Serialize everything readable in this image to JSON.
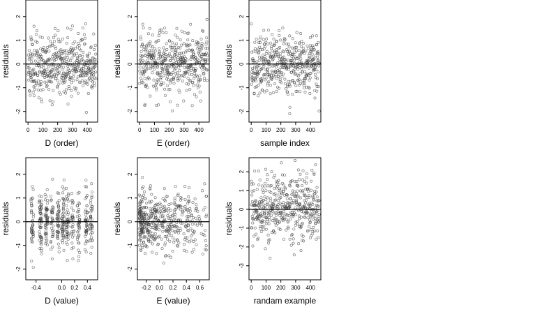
{
  "chart_data": [
    {
      "type": "scatter",
      "xlabel": "D (order)",
      "ylabel": "residuals",
      "xlim": [
        -15,
        470
      ],
      "ylim": [
        -2.45,
        2.7
      ],
      "xticks": [
        0,
        100,
        200,
        300,
        400
      ],
      "yticks": [
        -2,
        -1,
        0,
        1,
        2
      ],
      "hline": 0,
      "n": 460,
      "seed": 11,
      "xmode": "index",
      "sd": 0.75
    },
    {
      "type": "scatter",
      "xlabel": "E (order)",
      "ylabel": "residuals",
      "xlim": [
        -15,
        470
      ],
      "ylim": [
        -2.45,
        2.7
      ],
      "xticks": [
        0,
        100,
        200,
        300,
        400
      ],
      "yticks": [
        -2,
        -1,
        0,
        1,
        2
      ],
      "hline": 0,
      "n": 460,
      "seed": 23,
      "xmode": "index",
      "sd": 0.75
    },
    {
      "type": "scatter",
      "xlabel": "sample index",
      "ylabel": "residuals",
      "xlim": [
        -15,
        470
      ],
      "ylim": [
        -2.45,
        2.7
      ],
      "xticks": [
        0,
        100,
        200,
        300,
        400
      ],
      "yticks": [
        -2,
        -1,
        0,
        1,
        2
      ],
      "hline": 0,
      "n": 460,
      "seed": 37,
      "xmode": "index",
      "sd": 0.75
    },
    {
      "type": "scatter",
      "xlabel": "D (value)",
      "ylabel": "residuals",
      "xlim": [
        -0.56,
        0.56
      ],
      "ylim": [
        -2.45,
        2.7
      ],
      "xticks": [
        -0.4,
        0.0,
        0.2,
        0.4
      ],
      "xticklabels": [
        "-0.4",
        "0.0",
        "0.2",
        "0.4"
      ],
      "yticks": [
        -2,
        -1,
        0,
        1,
        2
      ],
      "hline": 0,
      "n": 460,
      "seed": 41,
      "xmode": "clustered",
      "xcenters": [
        -0.46,
        -0.33,
        -0.24,
        -0.15,
        -0.06,
        0.02,
        0.09,
        0.17,
        0.26,
        0.38,
        0.46
      ],
      "xjitter": 0.02,
      "sd": 0.75
    },
    {
      "type": "scatter",
      "xlabel": "E (value)",
      "ylabel": "residuals",
      "xlim": [
        -0.33,
        0.74
      ],
      "ylim": [
        -2.45,
        2.7
      ],
      "xticks": [
        -0.2,
        0.0,
        0.2,
        0.4,
        0.6
      ],
      "xticklabels": [
        "-0.2",
        "0.0",
        "0.2",
        "0.4",
        "0.6"
      ],
      "yticks": [
        -2,
        -1,
        0,
        1,
        2
      ],
      "hline": 0,
      "n": 460,
      "seed": 53,
      "xmode": "skewed",
      "xmin": -0.3,
      "xmax": 0.7,
      "sd": 0.75
    },
    {
      "type": "scatter",
      "xlabel": "randam example",
      "ylabel": "residuals",
      "xlim": [
        -15,
        470
      ],
      "ylim": [
        -3.75,
        2.75
      ],
      "xticks": [
        0,
        100,
        200,
        300,
        400
      ],
      "yticks": [
        -3,
        -2,
        -1,
        0,
        1,
        2
      ],
      "hline": 0,
      "n": 460,
      "seed": 67,
      "xmode": "index",
      "sd": 1.0
    }
  ]
}
